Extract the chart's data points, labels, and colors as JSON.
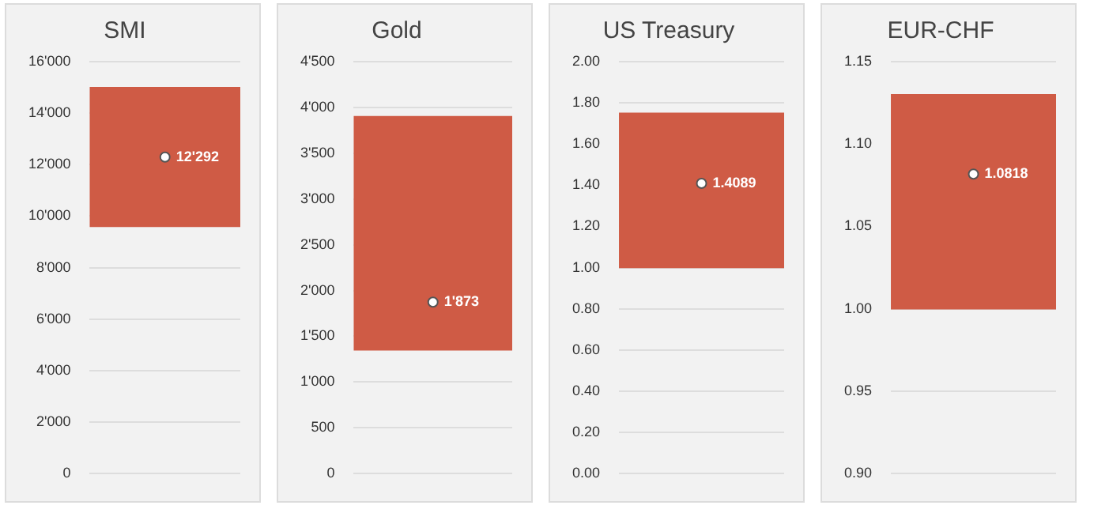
{
  "chart_data": [
    {
      "type": "bar",
      "title": "SMI",
      "categories": [
        null
      ],
      "series": [
        {
          "color": "#cf5b45",
          "base": [
            9600
          ],
          "values": [
            5400
          ]
        },
        {
          "type": "scatter",
          "color": "#ffffff",
          "marker": "circle",
          "values": [
            12292
          ],
          "value_labels": [
            "12'292"
          ]
        }
      ],
      "ylim": [
        0,
        16000
      ],
      "yticks": [
        {
          "value": 0,
          "label": "0"
        },
        {
          "value": 2000,
          "label": "2'000"
        },
        {
          "value": 4000,
          "label": "4'000"
        },
        {
          "value": 6000,
          "label": "6'000"
        },
        {
          "value": 8000,
          "label": "8'000"
        },
        {
          "value": 10000,
          "label": "10'000"
        },
        {
          "value": 12000,
          "label": "12'000"
        },
        {
          "value": 14000,
          "label": "14'000"
        },
        {
          "value": 16000,
          "label": "16'000"
        }
      ],
      "grid": "y",
      "tick_labels": "y"
    },
    {
      "type": "bar",
      "title": "Gold",
      "categories": [
        null
      ],
      "series": [
        {
          "color": "#cf5b45",
          "base": [
            1350
          ],
          "values": [
            2550
          ]
        },
        {
          "type": "scatter",
          "color": "#ffffff",
          "marker": "circle",
          "values": [
            1873
          ],
          "value_labels": [
            "1'873"
          ]
        }
      ],
      "ylim": [
        0,
        4500
      ],
      "yticks": [
        {
          "value": 0,
          "label": "0"
        },
        {
          "value": 500,
          "label": "500"
        },
        {
          "value": 1000,
          "label": "1'000"
        },
        {
          "value": 1500,
          "label": "1'500"
        },
        {
          "value": 2000,
          "label": "2'000"
        },
        {
          "value": 2500,
          "label": "2'500"
        },
        {
          "value": 3000,
          "label": "3'000"
        },
        {
          "value": 3500,
          "label": "3'500"
        },
        {
          "value": 4000,
          "label": "4'000"
        },
        {
          "value": 4500,
          "label": "4'500"
        }
      ],
      "grid": "y",
      "tick_labels": "y"
    },
    {
      "type": "bar",
      "title": "US Treasury",
      "categories": [
        null
      ],
      "series": [
        {
          "color": "#cf5b45",
          "base": [
            1.0
          ],
          "values": [
            0.75
          ]
        },
        {
          "type": "scatter",
          "color": "#ffffff",
          "marker": "circle",
          "values": [
            1.4089
          ],
          "value_labels": [
            "1.4089"
          ]
        }
      ],
      "ylim": [
        0,
        2
      ],
      "yticks": [
        {
          "value": 0,
          "label": "0.00"
        },
        {
          "value": 0.2,
          "label": "0.20"
        },
        {
          "value": 0.4,
          "label": "0.40"
        },
        {
          "value": 0.6,
          "label": "0.60"
        },
        {
          "value": 0.8,
          "label": "0.80"
        },
        {
          "value": 1,
          "label": "1.00"
        },
        {
          "value": 1.2,
          "label": "1.20"
        },
        {
          "value": 1.4,
          "label": "1.40"
        },
        {
          "value": 1.6,
          "label": "1.60"
        },
        {
          "value": 1.8,
          "label": "1.80"
        },
        {
          "value": 2,
          "label": "2.00"
        }
      ],
      "grid": "y",
      "tick_labels": "y"
    },
    {
      "type": "bar",
      "title": "EUR-CHF",
      "categories": [
        null
      ],
      "series": [
        {
          "color": "#cf5b45",
          "base": [
            1.0
          ],
          "values": [
            0.13
          ]
        },
        {
          "type": "scatter",
          "color": "#ffffff",
          "marker": "circle",
          "values": [
            1.0818
          ],
          "value_labels": [
            "1.0818"
          ]
        }
      ],
      "ylim": [
        0.9,
        1.15
      ],
      "yticks": [
        {
          "value": 0.9,
          "label": "0.90"
        },
        {
          "value": 0.95,
          "label": "0.95"
        },
        {
          "value": 1,
          "label": "1.00"
        },
        {
          "value": 1.05,
          "label": "1.05"
        },
        {
          "value": 1.1,
          "label": "1.10"
        },
        {
          "value": 1.15,
          "label": "1.15"
        }
      ],
      "grid": "y",
      "tick_labels": "y"
    }
  ]
}
